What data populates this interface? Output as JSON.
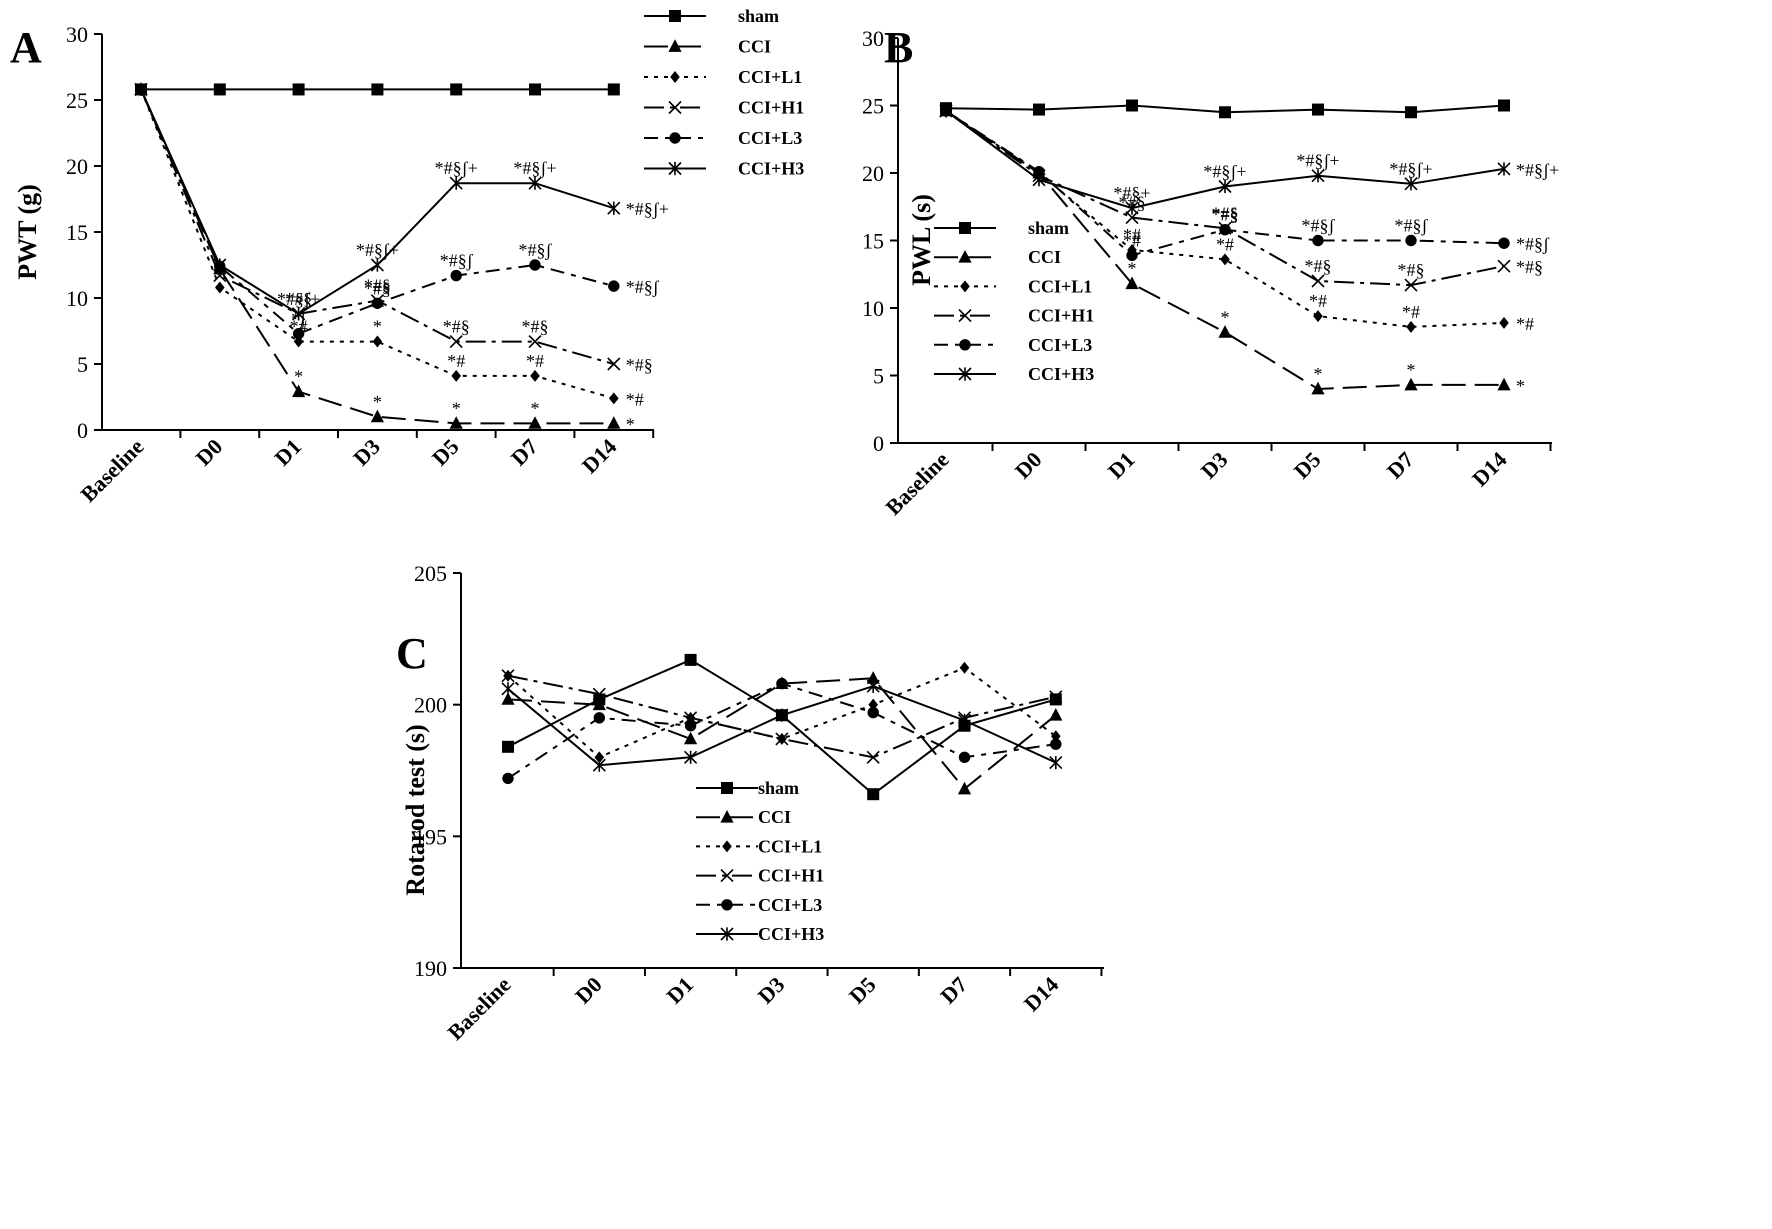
{
  "chart_data": [
    {
      "panel": "A",
      "type": "line",
      "ylabel": "PWT (g)",
      "ylim": [
        0,
        30
      ],
      "yticks": [
        0,
        5,
        10,
        15,
        20,
        25,
        30
      ],
      "categories": [
        "Baseline",
        "D0",
        "D1",
        "D3",
        "D5",
        "D7",
        "D14"
      ],
      "legend_position": "top-right",
      "series": [
        {
          "name": "sham",
          "marker": "square",
          "dash": "solid",
          "values": [
            25.8,
            25.8,
            25.8,
            25.8,
            25.8,
            25.8,
            25.8
          ],
          "annotations": [
            "",
            "",
            "",
            "",
            "",
            "",
            ""
          ]
        },
        {
          "name": "CCI",
          "marker": "triangle",
          "dash": "longdash",
          "values": [
            25.8,
            12.2,
            2.9,
            1.0,
            0.5,
            0.5,
            0.5
          ],
          "annotations": [
            "",
            "",
            "*",
            "*",
            "*",
            "*",
            "*"
          ]
        },
        {
          "name": "CCI+L1",
          "marker": "diamond",
          "dash": "dotted",
          "values": [
            25.8,
            10.8,
            6.7,
            6.7,
            4.1,
            4.1,
            2.4
          ],
          "annotations": [
            "",
            "",
            "*#",
            "*",
            "*#",
            "*#",
            "*#"
          ]
        },
        {
          "name": "CCI+H1",
          "marker": "x",
          "dash": "dashdot",
          "values": [
            25.8,
            11.7,
            8.8,
            9.8,
            6.7,
            6.7,
            5.0
          ],
          "annotations": [
            "",
            "",
            "*#§",
            "*#§",
            "*#§",
            "*#§",
            "*#§"
          ]
        },
        {
          "name": "CCI+L3",
          "marker": "circle",
          "dash": "dashdot2",
          "values": [
            25.8,
            12.4,
            7.3,
            9.6,
            11.7,
            12.5,
            10.9
          ],
          "annotations": [
            "",
            "",
            "*ʃ",
            "*#§",
            "*#§ʃ",
            "*#§ʃ",
            "*#§ʃ"
          ]
        },
        {
          "name": "CCI+H3",
          "marker": "asterisk",
          "dash": "solid",
          "values": [
            25.8,
            12.5,
            8.8,
            12.5,
            18.7,
            18.7,
            16.8
          ],
          "annotations": [
            "",
            "",
            "*#§ʃ+",
            "*#§ʃ+",
            "*#§ʃ+",
            "*#§ʃ+",
            "*#§ʃ+"
          ]
        }
      ]
    },
    {
      "panel": "B",
      "type": "line",
      "ylabel": "PWL (s)",
      "ylim": [
        0,
        30
      ],
      "yticks": [
        0,
        5,
        10,
        15,
        20,
        25,
        30
      ],
      "categories": [
        "Baseline",
        "D0",
        "D1",
        "D3",
        "D5",
        "D7",
        "D14"
      ],
      "legend_position": "middle-left",
      "series": [
        {
          "name": "sham",
          "marker": "square",
          "dash": "solid",
          "values": [
            24.8,
            24.7,
            25.0,
            24.5,
            24.7,
            24.5,
            25.0
          ],
          "annotations": [
            "",
            "",
            "",
            "",
            "",
            "",
            ""
          ]
        },
        {
          "name": "CCI",
          "marker": "triangle",
          "dash": "longdash",
          "values": [
            24.6,
            20.0,
            11.8,
            8.2,
            4.0,
            4.3,
            4.3
          ],
          "annotations": [
            "",
            "",
            "*",
            "*",
            "*",
            "*",
            "*"
          ]
        },
        {
          "name": "CCI+L1",
          "marker": "diamond",
          "dash": "dotted",
          "values": [
            24.6,
            20.0,
            14.3,
            13.6,
            9.4,
            8.6,
            8.9
          ],
          "annotations": [
            "",
            "",
            "*#",
            "*#",
            "*#",
            "*#",
            "*#"
          ]
        },
        {
          "name": "CCI+H1",
          "marker": "x",
          "dash": "dashdot",
          "values": [
            24.6,
            19.8,
            16.7,
            15.9,
            12.0,
            11.7,
            13.1
          ],
          "annotations": [
            "",
            "",
            "*#§",
            "*#§",
            "*#§",
            "*#§",
            "*#§"
          ]
        },
        {
          "name": "CCI+L3",
          "marker": "circle",
          "dash": "dashdot2",
          "values": [
            24.6,
            20.1,
            13.9,
            15.8,
            15.0,
            15.0,
            14.8
          ],
          "annotations": [
            "",
            "",
            "*#",
            "*#§",
            "*#§ʃ",
            "*#§ʃ",
            "*#§ʃ"
          ]
        },
        {
          "name": "CCI+H3",
          "marker": "asterisk",
          "dash": "solid",
          "values": [
            24.6,
            19.5,
            17.4,
            19.0,
            19.8,
            19.2,
            20.3
          ],
          "annotations": [
            "",
            "",
            "*#§+",
            "*#§ʃ+",
            "*#§ʃ+",
            "*#§ʃ+",
            "*#§ʃ+"
          ]
        }
      ]
    },
    {
      "panel": "C",
      "type": "line",
      "ylabel": "Rotarod test (s)",
      "ylim": [
        190,
        205
      ],
      "yticks": [
        190,
        195,
        200,
        205
      ],
      "categories": [
        "Baseline",
        "D0",
        "D1",
        "D3",
        "D5",
        "D7",
        "D14"
      ],
      "legend_position": "bottom-center",
      "series": [
        {
          "name": "sham",
          "marker": "square",
          "dash": "solid",
          "values": [
            198.4,
            200.2,
            201.7,
            199.6,
            196.6,
            199.2,
            200.2
          ]
        },
        {
          "name": "CCI",
          "marker": "triangle",
          "dash": "longdash",
          "values": [
            200.2,
            200.0,
            198.7,
            200.8,
            201.0,
            196.8,
            199.6
          ]
        },
        {
          "name": "CCI+L1",
          "marker": "diamond",
          "dash": "dotted",
          "values": [
            201.1,
            198.0,
            199.5,
            198.7,
            200.0,
            201.4,
            198.8
          ]
        },
        {
          "name": "CCI+H1",
          "marker": "x",
          "dash": "dashdot",
          "values": [
            201.1,
            200.4,
            199.5,
            198.7,
            198.0,
            199.5,
            200.3
          ]
        },
        {
          "name": "CCI+L3",
          "marker": "circle",
          "dash": "dashdot2",
          "values": [
            197.2,
            199.5,
            199.2,
            200.8,
            199.7,
            198.0,
            198.5
          ]
        },
        {
          "name": "CCI+H3",
          "marker": "asterisk",
          "dash": "solid",
          "values": [
            200.6,
            197.7,
            198.0,
            199.6,
            200.7,
            199.4,
            197.8
          ]
        }
      ]
    }
  ]
}
